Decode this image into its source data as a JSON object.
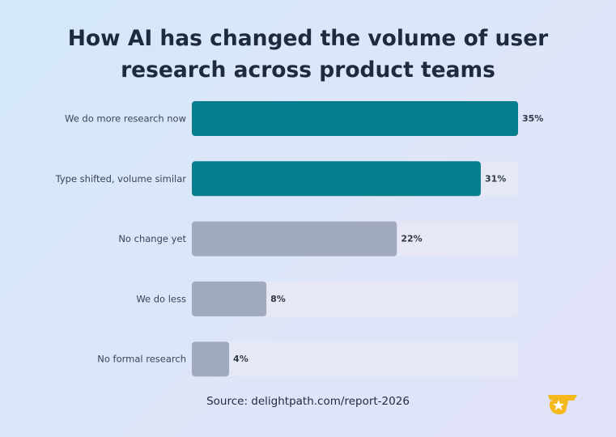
{
  "title_line1": "How AI has changed the volume of user",
  "title_line2": "research across product teams",
  "source": "Source: delightpath.com/report-2026",
  "colors": {
    "highlight": "#067d8c",
    "muted": "#a0a9be",
    "track": "#e6e9f5",
    "label": "#3a4457",
    "value": "#2e3748"
  },
  "chart_data": {
    "type": "bar",
    "orientation": "horizontal",
    "categories": [
      "We do more research now",
      "Type shifted, volume similar",
      "No change yet",
      "We do less",
      "No formal research"
    ],
    "values": [
      35,
      31,
      22,
      8,
      4
    ],
    "value_labels": [
      "35%",
      "31%",
      "22%",
      "8%",
      "4%"
    ],
    "highlight": [
      true,
      true,
      false,
      false,
      false
    ],
    "xlim": [
      0,
      35
    ],
    "unit": "%"
  },
  "logo_icon": "star-badge-icon"
}
